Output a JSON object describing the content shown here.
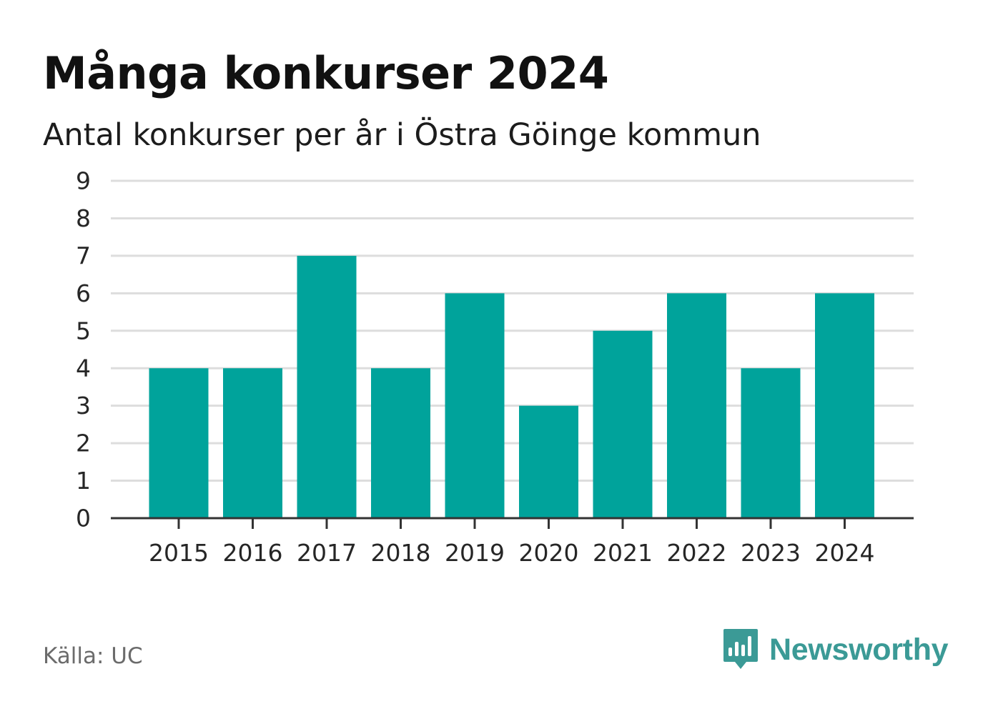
{
  "header": {
    "title": "Många konkurser 2024",
    "subtitle": "Antal konkurser per år i Östra Göinge kommun"
  },
  "footer": {
    "source": "Källa: UC",
    "brand": "Newsworthy",
    "brand_icon": "bar-chart-speech-bubble-icon"
  },
  "colors": {
    "bar": "#00a39b",
    "grid": "#dddddd",
    "axis": "#333333",
    "brand": "#3b9a96"
  },
  "chart_data": {
    "type": "bar",
    "title": "Många konkurser 2024",
    "subtitle": "Antal konkurser per år i Östra Göinge kommun",
    "xlabel": "",
    "ylabel": "",
    "categories": [
      "2015",
      "2016",
      "2017",
      "2018",
      "2019",
      "2020",
      "2021",
      "2022",
      "2023",
      "2024"
    ],
    "values": [
      4,
      4,
      7,
      4,
      6,
      3,
      5,
      6,
      4,
      6
    ],
    "ylim": [
      0,
      9
    ],
    "yticks": [
      0,
      1,
      2,
      3,
      4,
      5,
      6,
      7,
      8,
      9
    ],
    "grid": true,
    "legend": "none"
  }
}
